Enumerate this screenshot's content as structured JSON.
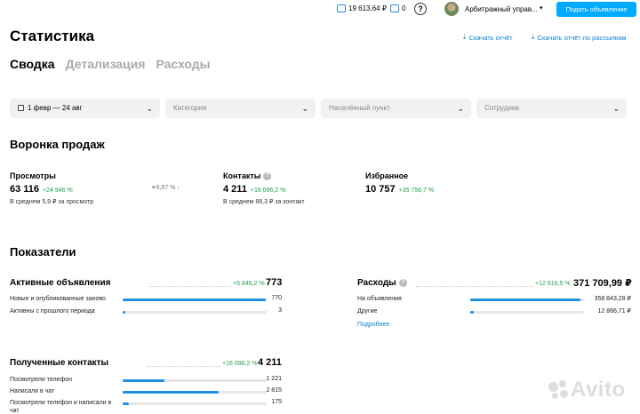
{
  "topbar": {
    "wallet": "19 613,64 ₽",
    "messages": "0",
    "help": "?",
    "user_name": "Арбитражный управ...",
    "post_ad_button": "Подать объявление"
  },
  "page": {
    "title": "Статистика",
    "download_report": "Скачать отчёт",
    "download_mailing": "Скачать отчёт по рассылкам"
  },
  "tabs": [
    {
      "label": "Сводка"
    },
    {
      "label": "Детализация"
    },
    {
      "label": "Расходы"
    }
  ],
  "filters": {
    "date": "1 февр — 24 авг",
    "category": "Категория",
    "locality": "Населённый пункт",
    "employee": "Сотрудник"
  },
  "funnel": {
    "title": "Воронка продаж",
    "views": {
      "label": "Просмотры",
      "value": "63 116",
      "delta": "+24 946 %",
      "sub": "В среднем 5,9 ₽ за просмотр",
      "conversion": "6,67 %"
    },
    "contacts": {
      "label": "Контакты",
      "value": "4 211",
      "delta": "+16 096,2 %",
      "sub": "В среднем 88,3 ₽ за контакт"
    },
    "favorites": {
      "label": "Избранное",
      "value": "10 757",
      "delta": "+35 756,7 %"
    }
  },
  "indicators": {
    "title": "Показатели",
    "active_ads": {
      "title": "Активные объявления",
      "delta": "+5 846,2 %",
      "total": "773",
      "rows": [
        {
          "label": "Новые и опубликованные заново",
          "value": "770",
          "fraction": 0.996
        },
        {
          "label": "Активны с прошлого периода",
          "value": "3",
          "fraction": 0.004
        }
      ]
    },
    "expenses": {
      "title": "Расходы",
      "delta": "+12 616,5 %",
      "total": "371 709,99 ₽",
      "rows": [
        {
          "label": "На объявления",
          "value": "358 843,28 ₽",
          "fraction": 0.965
        },
        {
          "label": "Другие",
          "value": "12 866,71 ₽",
          "fraction": 0.035
        }
      ],
      "more": "Подробнее"
    },
    "contacts": {
      "title": "Полученные контакты",
      "delta": "+16 096,2 %",
      "total": "4 211",
      "rows": [
        {
          "label": "Посмотрели телефон",
          "value": "1 221",
          "fraction": 0.29
        },
        {
          "label": "Написали в чат",
          "value": "2 815",
          "fraction": 0.668
        },
        {
          "label": "Посмотрели телефон и написали в чат",
          "value": "175",
          "fraction": 0.042
        }
      ]
    }
  },
  "logo": "Avito"
}
